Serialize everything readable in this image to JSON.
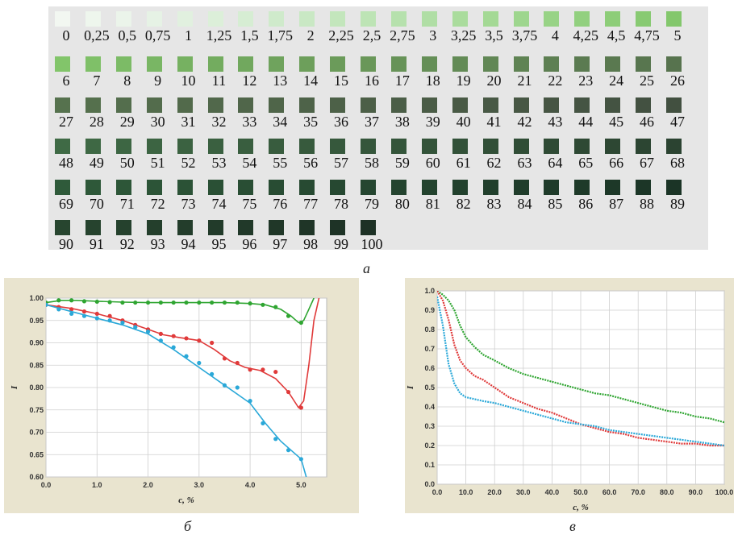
{
  "captions": {
    "a": "а",
    "b": "б",
    "c": "в"
  },
  "swatches": {
    "rows": [
      [
        "0",
        "0,25",
        "0,5",
        "0,75",
        "1",
        "1,25",
        "1,5",
        "1,75",
        "2",
        "2,25",
        "2,5",
        "2,75",
        "3",
        "3,25",
        "3,5",
        "3,75",
        "4",
        "4,25",
        "4,5",
        "4,75",
        "5"
      ],
      [
        "6",
        "7",
        "8",
        "9",
        "10",
        "11",
        "12",
        "13",
        "14",
        "15",
        "16",
        "17",
        "18",
        "19",
        "20",
        "21",
        "22",
        "23",
        "24",
        "25",
        "26"
      ],
      [
        "27",
        "28",
        "29",
        "30",
        "31",
        "32",
        "33",
        "34",
        "35",
        "36",
        "37",
        "38",
        "39",
        "40",
        "41",
        "42",
        "43",
        "44",
        "45",
        "46",
        "47"
      ],
      [
        "48",
        "49",
        "50",
        "51",
        "52",
        "53",
        "54",
        "55",
        "56",
        "57",
        "58",
        "59",
        "60",
        "61",
        "62",
        "63",
        "64",
        "65",
        "66",
        "67",
        "68"
      ],
      [
        "69",
        "70",
        "71",
        "72",
        "73",
        "74",
        "75",
        "76",
        "77",
        "78",
        "79",
        "80",
        "81",
        "82",
        "83",
        "84",
        "85",
        "86",
        "87",
        "88",
        "89"
      ],
      [
        "90",
        "91",
        "92",
        "93",
        "94",
        "95",
        "96",
        "97",
        "98",
        "99",
        "100"
      ]
    ],
    "colors": [
      [
        "#f2f7f1",
        "#eef6ed",
        "#ebf4ea",
        "#e6f2e5",
        "#e1f0df",
        "#dcefd9",
        "#d6edd3",
        "#cfeacb",
        "#c9e8c4",
        "#c3e6bc",
        "#bde4b5",
        "#b6e1ad",
        "#b0dea5",
        "#aadc9d",
        "#a4d995",
        "#9ed68e",
        "#98d386",
        "#92d07f",
        "#8dcd78",
        "#88ca72",
        "#83c76c"
      ],
      [
        "#82c56a",
        "#7fc068",
        "#7cbb66",
        "#79b664",
        "#76b161",
        "#73ac5f",
        "#71a85e",
        "#6fa35d",
        "#6d9f5b",
        "#6b9b5a",
        "#699759",
        "#679358",
        "#658f57",
        "#638b56",
        "#618755",
        "#5f8353",
        "#5d7f52",
        "#5b7b51",
        "#5a7950",
        "#58764f",
        "#57734e"
      ],
      [
        "#56724e",
        "#55704d",
        "#546e4d",
        "#536c4c",
        "#526a4b",
        "#51684b",
        "#50664a",
        "#4f6549",
        "#4e6349",
        "#4d6148",
        "#4c5f47",
        "#4b5e47",
        "#4a5c46",
        "#495a45",
        "#485945",
        "#475744",
        "#465543",
        "#455443",
        "#445342",
        "#435141",
        "#425040"
      ],
      [
        "#3f6a45",
        "#3e6844",
        "#3d6643",
        "#3c6442",
        "#3b6241",
        "#3a6040",
        "#395e3f",
        "#385c3e",
        "#375a3d",
        "#36583c",
        "#35563b",
        "#34553a",
        "#335339",
        "#325138",
        "#314f37",
        "#304d36",
        "#2f4b35",
        "#2e4934",
        "#2d4733",
        "#2c4532",
        "#2b4331"
      ],
      [
        "#2f5a3a",
        "#2e5839",
        "#2d5638",
        "#2c5437",
        "#2b5236",
        "#2a5035",
        "#294e34",
        "#284c33",
        "#274a32",
        "#264831",
        "#254630",
        "#24442f",
        "#23432e",
        "#22412d",
        "#213f2c",
        "#203d2b",
        "#1f3b2a",
        "#1e3a29",
        "#1d3828",
        "#1c3627",
        "#1b3426"
      ],
      [
        "#27452f",
        "#26432e",
        "#25412d",
        "#243f2c",
        "#233d2b",
        "#223b2a",
        "#213929",
        "#203728",
        "#1f3527",
        "#1e3326",
        "#1d3125"
      ]
    ]
  },
  "chart_data": [
    {
      "type": "scatter",
      "xlabel": "c, %",
      "ylabel": "I",
      "xlim": [
        0,
        5.5
      ],
      "ylim": [
        0.6,
        1.0
      ],
      "xticks": [
        "0.0",
        "1.0",
        "2.0",
        "3.0",
        "4.0",
        "5.0"
      ],
      "xtick_values": [
        0,
        1,
        2,
        3,
        4,
        5
      ],
      "yticks": [
        "1.00",
        "0.95",
        "0.90",
        "0.85",
        "0.80",
        "0.75",
        "0.70",
        "0.65",
        "0.60"
      ],
      "ytick_values": [
        1.0,
        0.95,
        0.9,
        0.85,
        0.8,
        0.75,
        0.7,
        0.65,
        0.6
      ],
      "grid": true,
      "series": [
        {
          "color": "#2fa531",
          "points_x": [
            0,
            0.25,
            0.5,
            0.75,
            1.0,
            1.25,
            1.5,
            1.75,
            2.0,
            2.25,
            2.5,
            2.75,
            3.0,
            3.25,
            3.5,
            3.75,
            4.0,
            4.25,
            4.5,
            4.75,
            5.0
          ],
          "points_y": [
            0.99,
            0.995,
            0.995,
            0.993,
            0.992,
            0.991,
            0.99,
            0.99,
            0.99,
            0.99,
            0.99,
            0.99,
            0.99,
            0.99,
            0.99,
            0.99,
            0.988,
            0.985,
            0.98,
            0.96,
            0.945
          ],
          "curve_x": [
            0,
            0.3,
            0.6,
            1.0,
            1.5,
            2.0,
            2.5,
            3.0,
            3.5,
            4.0,
            4.3,
            4.6,
            4.8,
            4.95,
            5.05,
            5.15,
            5.25
          ],
          "curve_y": [
            0.99,
            0.995,
            0.995,
            0.993,
            0.991,
            0.99,
            0.99,
            0.99,
            0.99,
            0.988,
            0.985,
            0.975,
            0.96,
            0.945,
            0.95,
            0.975,
            1.0
          ]
        },
        {
          "color": "#e03a3a",
          "points_x": [
            0,
            0.25,
            0.5,
            0.75,
            1.0,
            1.25,
            1.5,
            1.75,
            2.0,
            2.25,
            2.5,
            2.75,
            3.0,
            3.25,
            3.5,
            3.75,
            4.0,
            4.25,
            4.5,
            4.75,
            5.0
          ],
          "points_y": [
            0.985,
            0.98,
            0.975,
            0.97,
            0.965,
            0.96,
            0.95,
            0.94,
            0.93,
            0.92,
            0.915,
            0.91,
            0.905,
            0.9,
            0.865,
            0.855,
            0.84,
            0.84,
            0.835,
            0.79,
            0.755
          ],
          "curve_x": [
            0,
            0.5,
            1.0,
            1.5,
            2.0,
            2.3,
            2.6,
            3.0,
            3.3,
            3.6,
            3.9,
            4.2,
            4.5,
            4.75,
            4.95,
            5.05,
            5.15,
            5.25,
            5.35
          ],
          "curve_y": [
            0.985,
            0.977,
            0.965,
            0.95,
            0.93,
            0.918,
            0.912,
            0.905,
            0.885,
            0.86,
            0.845,
            0.838,
            0.82,
            0.79,
            0.755,
            0.77,
            0.85,
            0.95,
            1.0
          ]
        },
        {
          "color": "#2aa8d8",
          "points_x": [
            0,
            0.25,
            0.5,
            0.75,
            1.0,
            1.25,
            1.5,
            1.75,
            2.0,
            2.25,
            2.5,
            2.75,
            3.0,
            3.25,
            3.5,
            3.75,
            4.0,
            4.25,
            4.5,
            4.75,
            5.0
          ],
          "points_y": [
            0.985,
            0.975,
            0.965,
            0.96,
            0.955,
            0.95,
            0.945,
            0.935,
            0.925,
            0.905,
            0.89,
            0.87,
            0.855,
            0.83,
            0.805,
            0.8,
            0.77,
            0.72,
            0.685,
            0.66,
            0.64
          ],
          "curve_x": [
            0,
            0.5,
            1.0,
            1.5,
            2.0,
            2.5,
            3.0,
            3.5,
            4.0,
            4.3,
            4.6,
            4.8,
            5.0,
            5.1
          ],
          "curve_y": [
            0.985,
            0.97,
            0.955,
            0.94,
            0.92,
            0.885,
            0.845,
            0.805,
            0.765,
            0.72,
            0.68,
            0.66,
            0.64,
            0.6
          ]
        }
      ]
    },
    {
      "type": "line",
      "xlabel": "c, %",
      "ylabel": "I",
      "xlim": [
        0,
        100
      ],
      "ylim": [
        0,
        1.0
      ],
      "xticks": [
        "0.0",
        "10.0",
        "20.0",
        "30.0",
        "40.0",
        "50.0",
        "60.0",
        "70.0",
        "80.0",
        "90.0",
        "100.0"
      ],
      "xtick_values": [
        0,
        10,
        20,
        30,
        40,
        50,
        60,
        70,
        80,
        90,
        100
      ],
      "yticks": [
        "1.0",
        "0.9",
        "0.8",
        "0.7",
        "0.6",
        "0.5",
        "0.4",
        "0.3",
        "0.2",
        "0.1",
        "0.0"
      ],
      "ytick_values": [
        1.0,
        0.9,
        0.8,
        0.7,
        0.6,
        0.5,
        0.4,
        0.3,
        0.2,
        0.1,
        0.0
      ],
      "grid": true,
      "series": [
        {
          "color": "#2fa531",
          "x": [
            0,
            2,
            4,
            6,
            8,
            10,
            13,
            16,
            20,
            25,
            30,
            35,
            40,
            45,
            50,
            55,
            60,
            65,
            70,
            75,
            80,
            85,
            90,
            95,
            100
          ],
          "y": [
            1.0,
            0.98,
            0.95,
            0.9,
            0.82,
            0.76,
            0.71,
            0.67,
            0.64,
            0.6,
            0.57,
            0.55,
            0.53,
            0.51,
            0.49,
            0.47,
            0.46,
            0.44,
            0.42,
            0.4,
            0.38,
            0.37,
            0.35,
            0.34,
            0.32
          ]
        },
        {
          "color": "#e03a3a",
          "x": [
            0,
            2,
            4,
            6,
            8,
            10,
            13,
            16,
            20,
            25,
            30,
            35,
            40,
            45,
            50,
            55,
            60,
            65,
            70,
            75,
            80,
            85,
            90,
            95,
            100
          ],
          "y": [
            1.0,
            0.95,
            0.85,
            0.72,
            0.64,
            0.6,
            0.56,
            0.54,
            0.5,
            0.45,
            0.42,
            0.39,
            0.37,
            0.34,
            0.31,
            0.29,
            0.27,
            0.26,
            0.24,
            0.23,
            0.22,
            0.21,
            0.21,
            0.2,
            0.2
          ]
        },
        {
          "color": "#2aa8d8",
          "x": [
            0,
            2,
            4,
            6,
            8,
            10,
            13,
            16,
            20,
            25,
            30,
            35,
            40,
            45,
            50,
            55,
            60,
            65,
            70,
            75,
            80,
            85,
            90,
            95,
            100
          ],
          "y": [
            0.97,
            0.82,
            0.62,
            0.52,
            0.47,
            0.45,
            0.44,
            0.43,
            0.42,
            0.4,
            0.38,
            0.36,
            0.34,
            0.32,
            0.31,
            0.3,
            0.28,
            0.27,
            0.26,
            0.25,
            0.24,
            0.23,
            0.22,
            0.21,
            0.2
          ]
        }
      ]
    }
  ]
}
